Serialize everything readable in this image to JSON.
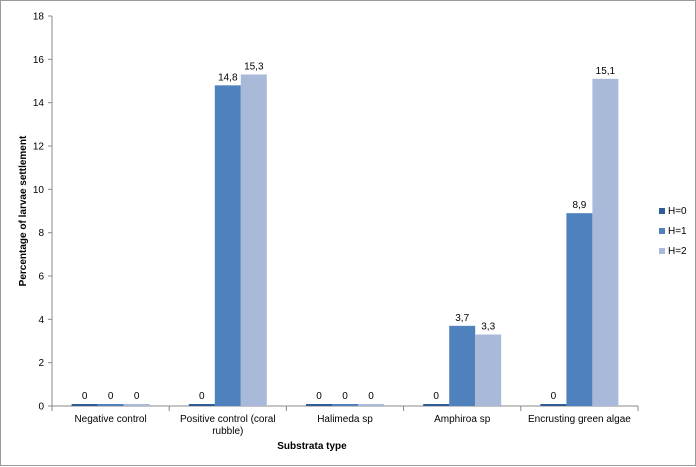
{
  "chart_data": {
    "type": "bar",
    "title": "",
    "xlabel": "Substrata type",
    "ylabel": "Percentage of larvae settlement",
    "ylim": [
      0,
      18
    ],
    "yticks": [
      0,
      2,
      4,
      6,
      8,
      10,
      12,
      14,
      16,
      18
    ],
    "grid": false,
    "legend_position": "right",
    "categories": [
      [
        "Negative control"
      ],
      [
        "Positive control (coral",
        "rubble)"
      ],
      [
        "Halimeda sp"
      ],
      [
        "Amphiroa sp"
      ],
      [
        "Encrusting green algae"
      ]
    ],
    "series": [
      {
        "name": "H=0",
        "color": "#2f5d96",
        "values": [
          0,
          0,
          0,
          0,
          0
        ],
        "labels": [
          "0",
          "0",
          "0",
          "0",
          "0"
        ]
      },
      {
        "name": "H=1",
        "color": "#4f81bd",
        "values": [
          0,
          14.8,
          0,
          3.7,
          8.9
        ],
        "labels": [
          "0",
          "14,8",
          "0",
          "3,7",
          "8,9"
        ]
      },
      {
        "name": "H=2",
        "color": "#a9b9d9",
        "values": [
          0,
          15.3,
          0,
          3.3,
          15.1
        ],
        "labels": [
          "0",
          "15,3",
          "0",
          "3,3",
          "15,1"
        ]
      }
    ]
  }
}
